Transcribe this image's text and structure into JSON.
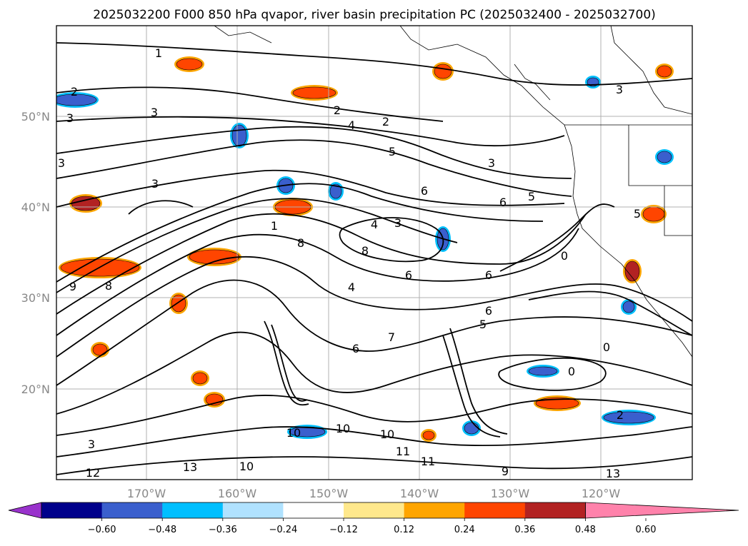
{
  "title": "2025032200 F000 850 hPa qvapor, river basin precipitation PC (2025032400 - 2025032700)",
  "map": {
    "lat_ticks": [
      "50°N",
      "40°N",
      "30°N",
      "20°N"
    ],
    "lon_ticks": [
      "170°W",
      "160°W",
      "150°W",
      "140°W",
      "130°W",
      "120°W"
    ],
    "gridlines": true,
    "contour_color": "#000000",
    "contour_labels": [
      {
        "text": "1"
      },
      {
        "text": "2"
      },
      {
        "text": "3"
      },
      {
        "text": "3"
      },
      {
        "text": "3"
      },
      {
        "text": "2"
      },
      {
        "text": "4"
      },
      {
        "text": "5"
      },
      {
        "text": "3"
      },
      {
        "text": "6"
      },
      {
        "text": "6"
      },
      {
        "text": "5"
      },
      {
        "text": "3"
      },
      {
        "text": "4"
      },
      {
        "text": "1"
      },
      {
        "text": "8"
      },
      {
        "text": "8"
      },
      {
        "text": "9"
      },
      {
        "text": "8"
      },
      {
        "text": "6"
      },
      {
        "text": "6"
      },
      {
        "text": "6"
      },
      {
        "text": "5"
      },
      {
        "text": "7"
      },
      {
        "text": "0"
      },
      {
        "text": "0"
      },
      {
        "text": "2"
      },
      {
        "text": "10"
      },
      {
        "text": "10"
      },
      {
        "text": "10"
      },
      {
        "text": "11"
      },
      {
        "text": "11"
      },
      {
        "text": "10"
      },
      {
        "text": "13"
      },
      {
        "text": "12"
      },
      {
        "text": "13"
      },
      {
        "text": "9"
      },
      {
        "text": "3"
      },
      {
        "text": "0"
      },
      {
        "text": "4"
      },
      {
        "text": "3"
      },
      {
        "text": "5"
      },
      {
        "text": "3"
      },
      {
        "text": "2"
      },
      {
        "text": "6"
      }
    ]
  },
  "colorbar": {
    "tick_labels": [
      "−0.60",
      "−0.48",
      "−0.36",
      "−0.24",
      "−0.12",
      "0.12",
      "0.24",
      "0.36",
      "0.48",
      "0.60"
    ],
    "colors": [
      "#9932cc",
      "#00008b",
      "#3a5fcd",
      "#00bfff",
      "#b0e2ff",
      "#ffffff",
      "#ffe88c",
      "#ffa500",
      "#ff4500",
      "#b22222",
      "#ff82ab"
    ],
    "extend": "both"
  }
}
